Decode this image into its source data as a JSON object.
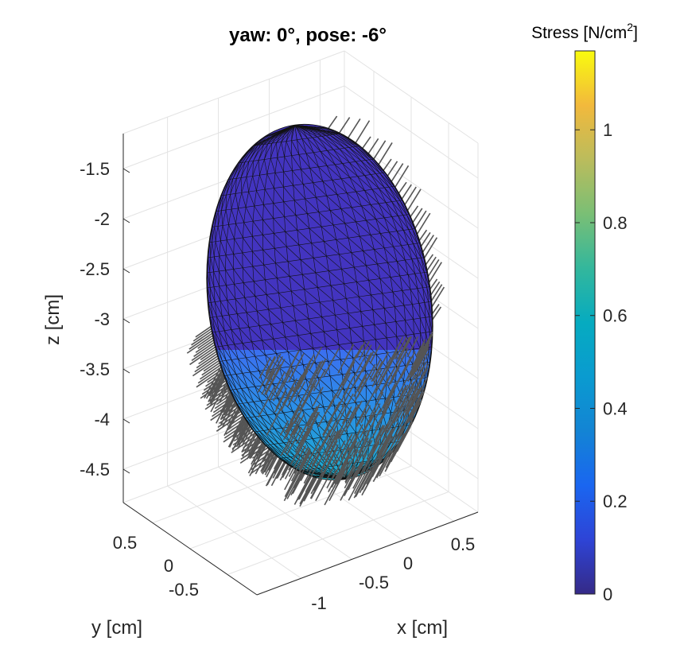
{
  "chart_data": {
    "type": "surface3d",
    "title": "yaw: 0°,  pose: -6°",
    "xlabel": "x [cm]",
    "ylabel": "y [cm]",
    "zlabel": "z [cm]",
    "x_ticks": [
      "-1",
      "-0.5",
      "0",
      "0.5"
    ],
    "y_ticks": [
      "-0.5",
      "0",
      "0.5"
    ],
    "z_ticks": [
      "-1.5",
      "-2",
      "-2.5",
      "-3",
      "-3.5",
      "-4",
      "-4.5"
    ],
    "grid": true,
    "colorbar": {
      "label": "Stress [N/cm",
      "label_sup": "2",
      "label_close": "]",
      "colormap": "parula",
      "range": [
        0,
        1.17
      ],
      "ticks": [
        "0",
        "0.2",
        "0.4",
        "0.6",
        "0.8",
        "1"
      ],
      "tick_values": [
        0,
        0.2,
        0.4,
        0.6,
        0.8,
        1.0
      ]
    },
    "surface": {
      "shape": "ellipsoid",
      "upper_region_stress": 0.07,
      "lower_region_stress_range": [
        0.2,
        0.65
      ],
      "vector_color": "#555555"
    }
  }
}
